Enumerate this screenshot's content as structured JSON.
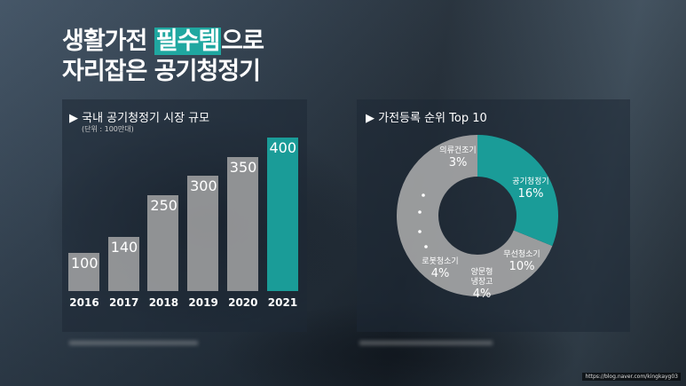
{
  "title": {
    "line1_pre": "생활가전 ",
    "line1_highlight": "필수템",
    "line1_post": "으로",
    "line2": "자리잡은 공기청정기"
  },
  "colors": {
    "accent": "#1a9c98",
    "bar": "#aaaaaa"
  },
  "watermark": "https://blog.naver.com/kingkayg03",
  "chart_data": [
    {
      "type": "bar",
      "title": "▶ 국내 공기청정기 시장 규모",
      "subtitle": "(단위 : 100만대)",
      "categories": [
        "2016",
        "2017",
        "2018",
        "2019",
        "2020",
        "2021"
      ],
      "values": [
        100,
        140,
        250,
        300,
        350,
        400
      ],
      "value_labels": [
        "100",
        "140",
        "250",
        "300",
        "350",
        "400"
      ],
      "highlight": "2021",
      "ylim": [
        0,
        400
      ],
      "grid": false
    },
    {
      "type": "pie",
      "title": "▶ 가전등록 순위 Top 10",
      "donut": true,
      "slices": [
        {
          "name": "공기청정기",
          "value": 16,
          "label": "16%",
          "highlight": true
        },
        {
          "name": "무선청소기",
          "value": 10,
          "label": "10%"
        },
        {
          "name": "양문형 냉장고",
          "name_lines": [
            "양문형",
            "냉장고"
          ],
          "value": 4,
          "label": "4%"
        },
        {
          "name": "로봇청소기",
          "value": 4,
          "label": "4%"
        },
        {
          "name": "의류건조기",
          "value": 3,
          "label": "3%"
        }
      ],
      "more_indicator": "dots"
    }
  ]
}
